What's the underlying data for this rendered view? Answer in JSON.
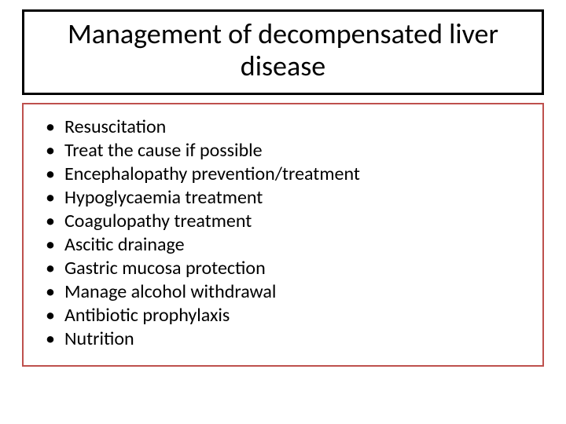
{
  "slide": {
    "title": "Management of decompensated liver disease",
    "title_box": {
      "border_color": "#000000",
      "border_width": 3,
      "background_color": "#ffffff"
    },
    "content_box": {
      "border_color": "#be504d",
      "border_width": 2,
      "background_color": "#ffffff"
    },
    "typography": {
      "title_fontsize": 36,
      "bullet_fontsize": 24,
      "font_family": "Calibri",
      "text_color": "#000000"
    },
    "bullets": [
      "Resuscitation",
      "Treat the cause if possible",
      "Encephalopathy prevention/treatment",
      "Hypoglycaemia treatment",
      "Coagulopathy treatment",
      "Ascitic drainage",
      "Gastric mucosa protection",
      "Manage alcohol withdrawal",
      "Antibiotic prophylaxis",
      "Nutrition"
    ],
    "bullet_char": "•"
  }
}
